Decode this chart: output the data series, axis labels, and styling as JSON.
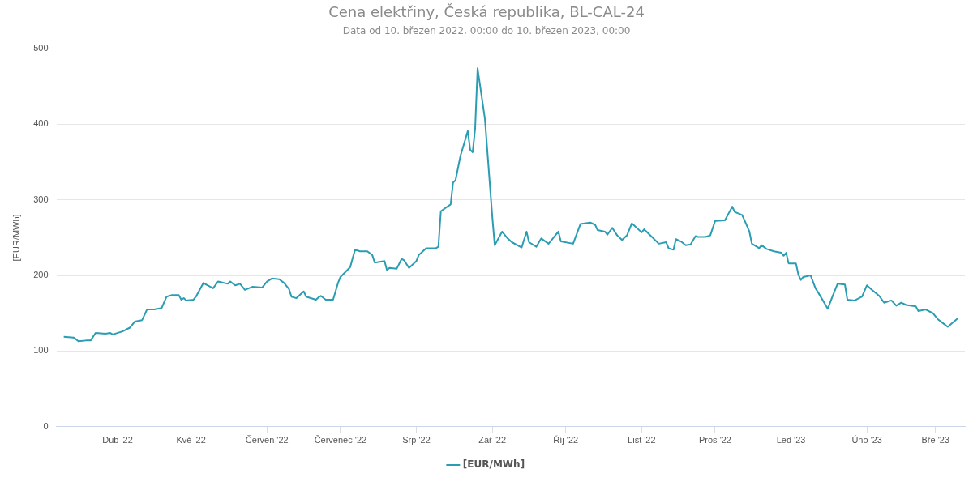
{
  "chart_data": {
    "type": "line",
    "title": "Cena elektřiny, Česká republika, BL-CAL-24",
    "subtitle": "Data od 10. březen 2022, 00:00 do 10. březen 2023, 00:00",
    "ylabel": "[EUR/MWh]",
    "xlim": [
      "2022-03-07",
      "2023-03-13"
    ],
    "xticks": [
      {
        "value": "2022-04-01",
        "label": "Dub '22"
      },
      {
        "value": "2022-05-01",
        "label": "Kvě '22"
      },
      {
        "value": "2022-06-01",
        "label": "Červen '22"
      },
      {
        "value": "2022-07-01",
        "label": "Červenec '22"
      },
      {
        "value": "2022-08-01",
        "label": "Srp '22"
      },
      {
        "value": "2022-09-01",
        "label": "Zář '22"
      },
      {
        "value": "2022-10-01",
        "label": "Říj '22"
      },
      {
        "value": "2022-11-01",
        "label": "List '22"
      },
      {
        "value": "2022-12-01",
        "label": "Pros '22"
      },
      {
        "value": "2023-01-01",
        "label": "Led '23"
      },
      {
        "value": "2023-02-01",
        "label": "Úno '23"
      },
      {
        "value": "2023-03-01",
        "label": "Bře '23"
      }
    ],
    "ylim": [
      0,
      500
    ],
    "yticks": [
      0,
      100,
      200,
      300,
      400,
      500
    ],
    "grid": "y",
    "legend": "bottom",
    "marker": "none",
    "line_style": "solid",
    "x": [
      "2022-03-10",
      "2022-03-14",
      "2022-03-16",
      "2022-03-19",
      "2022-03-21",
      "2022-03-23",
      "2022-03-27",
      "2022-03-29",
      "2022-03-30",
      "2022-04-03",
      "2022-04-06",
      "2022-04-08",
      "2022-04-11",
      "2022-04-13",
      "2022-04-16",
      "2022-04-19",
      "2022-04-21",
      "2022-04-23",
      "2022-04-26",
      "2022-04-27",
      "2022-04-28",
      "2022-04-29",
      "2022-05-02",
      "2022-05-03",
      "2022-05-06",
      "2022-05-10",
      "2022-05-12",
      "2022-05-16",
      "2022-05-17",
      "2022-05-19",
      "2022-05-21",
      "2022-05-23",
      "2022-05-26",
      "2022-05-30",
      "2022-06-01",
      "2022-06-03",
      "2022-06-06",
      "2022-06-08",
      "2022-06-10",
      "2022-06-11",
      "2022-06-13",
      "2022-06-15",
      "2022-06-16",
      "2022-06-17",
      "2022-06-21",
      "2022-06-22",
      "2022-06-23",
      "2022-06-25",
      "2022-06-28",
      "2022-06-30",
      "2022-07-01",
      "2022-07-05",
      "2022-07-06",
      "2022-07-07",
      "2022-07-09",
      "2022-07-12",
      "2022-07-14",
      "2022-07-15",
      "2022-07-19",
      "2022-07-20",
      "2022-07-21",
      "2022-07-24",
      "2022-07-26",
      "2022-07-27",
      "2022-07-29",
      "2022-08-01",
      "2022-08-02",
      "2022-08-04",
      "2022-08-05",
      "2022-08-09",
      "2022-08-10",
      "2022-08-11",
      "2022-08-15",
      "2022-08-16",
      "2022-08-17",
      "2022-08-19",
      "2022-08-21",
      "2022-08-22",
      "2022-08-23",
      "2022-08-24",
      "2022-08-25",
      "2022-08-26",
      "2022-08-29",
      "2022-09-01",
      "2022-09-02",
      "2022-09-05",
      "2022-09-07",
      "2022-09-09",
      "2022-09-13",
      "2022-09-15",
      "2022-09-16",
      "2022-09-19",
      "2022-09-21",
      "2022-09-24",
      "2022-09-26",
      "2022-09-28",
      "2022-09-29",
      "2022-10-04",
      "2022-10-07",
      "2022-10-11",
      "2022-10-13",
      "2022-10-14",
      "2022-10-17",
      "2022-10-18",
      "2022-10-20",
      "2022-10-22",
      "2022-10-24",
      "2022-10-26",
      "2022-10-28",
      "2022-11-01",
      "2022-11-02",
      "2022-11-03",
      "2022-11-08",
      "2022-11-11",
      "2022-11-12",
      "2022-11-14",
      "2022-11-15",
      "2022-11-17",
      "2022-11-19",
      "2022-11-21",
      "2022-11-23",
      "2022-11-24",
      "2022-11-27",
      "2022-11-29",
      "2022-12-01",
      "2022-12-05",
      "2022-12-08",
      "2022-12-09",
      "2022-12-12",
      "2022-12-13",
      "2022-12-15",
      "2022-12-16",
      "2022-12-19",
      "2022-12-20",
      "2022-12-22",
      "2022-12-25",
      "2022-12-28",
      "2022-12-29",
      "2022-12-30",
      "2022-12-31",
      "2023-01-03",
      "2023-01-04",
      "2023-01-05",
      "2023-01-06",
      "2023-01-09",
      "2023-01-11",
      "2023-01-12",
      "2023-01-16",
      "2023-01-18",
      "2023-01-20",
      "2023-01-23",
      "2023-01-24",
      "2023-01-27",
      "2023-01-30",
      "2023-02-01",
      "2023-02-03",
      "2023-02-06",
      "2023-02-08",
      "2023-02-11",
      "2023-02-13",
      "2023-02-15",
      "2023-02-17",
      "2023-02-21",
      "2023-02-22",
      "2023-02-25",
      "2023-02-28",
      "2023-03-02",
      "2023-03-04",
      "2023-03-06",
      "2023-03-10"
    ],
    "series": [
      {
        "name": "[EUR/MWh]",
        "color": "#2b9db3",
        "values": [
          119,
          118,
          113,
          114,
          114,
          124,
          123,
          124,
          122,
          126,
          131,
          139,
          141,
          155,
          155,
          157,
          172,
          174,
          174,
          168,
          170,
          167,
          168,
          172,
          190,
          183,
          192,
          189,
          192,
          187,
          189,
          181,
          185,
          184,
          192,
          196,
          195,
          190,
          182,
          172,
          170,
          176,
          179,
          172,
          168,
          171,
          173,
          168,
          168,
          190,
          198,
          211,
          223,
          234,
          232,
          232,
          227,
          217,
          219,
          207,
          210,
          209,
          222,
          220,
          210,
          219,
          227,
          233,
          236,
          236,
          238,
          285,
          294,
          323,
          326,
          358,
          380,
          391,
          366,
          363,
          394,
          474,
          407,
          278,
          240,
          258,
          250,
          244,
          237,
          258,
          244,
          238,
          249,
          242,
          250,
          258,
          245,
          242,
          268,
          270,
          267,
          260,
          258,
          254,
          263,
          253,
          247,
          253,
          269,
          257,
          261,
          258,
          242,
          244,
          236,
          234,
          248,
          245,
          240,
          241,
          252,
          251,
          251,
          253,
          272,
          273,
          291,
          284,
          280,
          273,
          258,
          242,
          236,
          240,
          235,
          232,
          230,
          226,
          230,
          216,
          216,
          201,
          194,
          198,
          200,
          183,
          178,
          156,
          173,
          189,
          188,
          168,
          167,
          172,
          187,
          181,
          173,
          164,
          167,
          160,
          164,
          161,
          159,
          153,
          155,
          150,
          142,
          137,
          132,
          143
        ]
      }
    ]
  }
}
